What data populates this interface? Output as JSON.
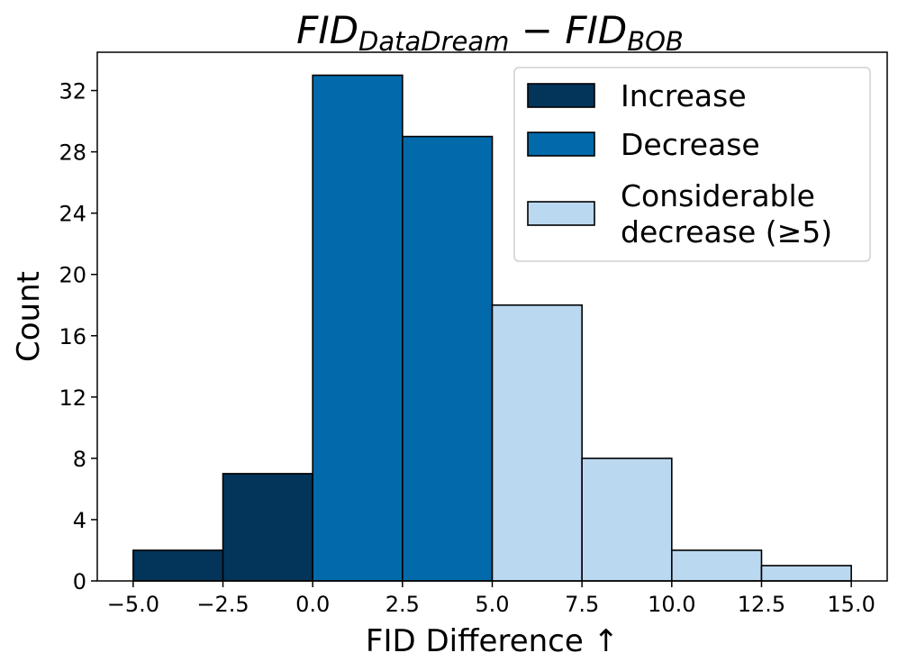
{
  "chart_data": {
    "type": "bar",
    "title": {
      "main1": "FID",
      "sub1": "DataDream",
      "op": " − ",
      "main2": "FID",
      "sub2": "BOB"
    },
    "xlabel": "FID Difference ↑",
    "ylabel": "Count",
    "xlim": [
      -6.0,
      16.0
    ],
    "ylim": [
      0,
      34.5
    ],
    "xticks": [
      -5.0,
      -2.5,
      0.0,
      2.5,
      5.0,
      7.5,
      10.0,
      12.5,
      15.0
    ],
    "xtick_labels": [
      "−5.0",
      "−2.5",
      "0.0",
      "2.5",
      "5.0",
      "7.5",
      "10.0",
      "12.5",
      "15.0"
    ],
    "yticks": [
      0,
      4,
      8,
      12,
      16,
      20,
      24,
      28,
      32
    ],
    "ytick_labels": [
      "0",
      "4",
      "8",
      "12",
      "16",
      "20",
      "24",
      "28",
      "32"
    ],
    "bin_width": 2.5,
    "bins": [
      {
        "start": -5.0,
        "count": 2,
        "category": "Increase"
      },
      {
        "start": -2.5,
        "count": 7,
        "category": "Increase"
      },
      {
        "start": 0.0,
        "count": 33,
        "category": "Decrease"
      },
      {
        "start": 2.5,
        "count": 29,
        "category": "Decrease"
      },
      {
        "start": 5.0,
        "count": 18,
        "category": "Considerable decrease (≥5)"
      },
      {
        "start": 7.5,
        "count": 8,
        "category": "Considerable decrease (≥5)"
      },
      {
        "start": 10.0,
        "count": 2,
        "category": "Considerable decrease (≥5)"
      },
      {
        "start": 12.5,
        "count": 1,
        "category": "Considerable decrease (≥5)"
      }
    ],
    "legend": {
      "position": "top-right",
      "entries": [
        {
          "name": "Increase",
          "lines": [
            "Increase"
          ],
          "color": "#03345a"
        },
        {
          "name": "Decrease",
          "lines": [
            "Decrease"
          ],
          "color": "#026aaa"
        },
        {
          "name": "Considerable decrease (≥5)",
          "lines": [
            "Considerable",
            "decrease (≥5)"
          ],
          "color": "#bbd8f1"
        }
      ]
    }
  }
}
